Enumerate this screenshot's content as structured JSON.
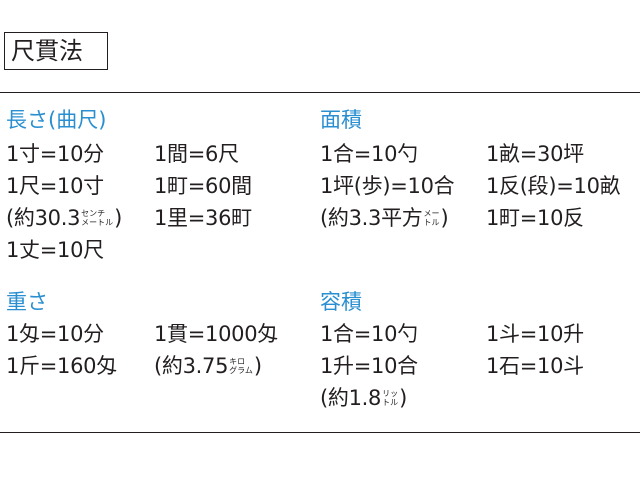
{
  "title": "尺貫法",
  "colors": {
    "heading": "#2a8fd0",
    "text": "#231f20",
    "rule": "#231f20"
  },
  "sections": {
    "length": {
      "title": "長さ(曲尺)",
      "col1": [
        "1寸=10分",
        "1尺=10寸"
      ],
      "note": {
        "prefix": "(約30.3",
        "unit_top": "センチ",
        "unit_bottom": "メートル",
        "suffix": ")"
      },
      "col1_last": "1丈=10尺",
      "col2": [
        "1間=6尺",
        "1町=60間",
        "1里=36町"
      ]
    },
    "area": {
      "title": "面積",
      "col1": [
        "1合=10勺",
        "1坪(歩)=10合"
      ],
      "note": {
        "prefix": "(約3.3平方",
        "unit_top": "メー",
        "unit_bottom": "トル",
        "suffix": ")"
      },
      "col2": [
        "1畝=30坪",
        "1反(段)=10畝",
        "1町=10反"
      ]
    },
    "weight": {
      "title": "重さ",
      "col1": [
        "1匁=10分",
        "1斤=160匁"
      ],
      "col2": [
        "1貫=1000匁"
      ],
      "note": {
        "prefix": "(約3.75",
        "unit_top": "キロ",
        "unit_bottom": "グラム",
        "suffix": ")"
      }
    },
    "volume": {
      "title": "容積",
      "col1": [
        "1合=10勺",
        "1升=10合"
      ],
      "note": {
        "prefix": "(約1.8",
        "unit_top": "リッ",
        "unit_bottom": "トル",
        "suffix": ")"
      },
      "col2": [
        "1斗=10升",
        "1石=10斗"
      ]
    }
  }
}
